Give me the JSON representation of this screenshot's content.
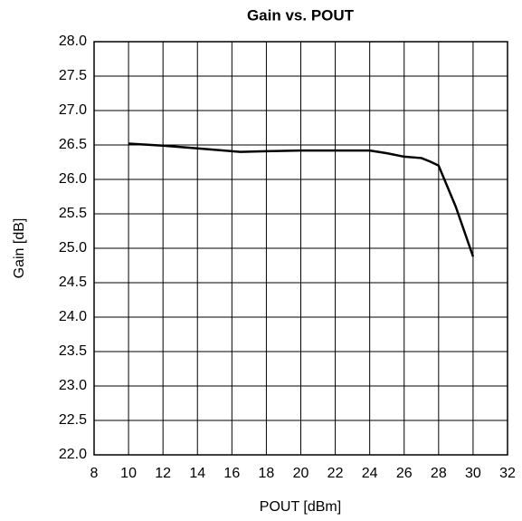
{
  "chart_data": {
    "type": "line",
    "title": "Gain vs. POUT",
    "xlabel": "POUT [dBm]",
    "ylabel": "Gain [dB]",
    "x": [
      10,
      12,
      14,
      16,
      16.5,
      18,
      20,
      22,
      24,
      25,
      26,
      27,
      27.5,
      28,
      29,
      30
    ],
    "series": [
      {
        "name": "Gain",
        "color": "#000000",
        "values": [
          26.52,
          26.49,
          26.45,
          26.41,
          26.4,
          26.41,
          26.42,
          26.42,
          26.42,
          26.38,
          26.33,
          26.31,
          26.26,
          26.2,
          25.6,
          24.88
        ]
      }
    ],
    "xlim": [
      8,
      32
    ],
    "xticks": [
      8,
      10,
      12,
      14,
      16,
      18,
      20,
      22,
      24,
      26,
      28,
      30,
      32
    ],
    "ylim": [
      22,
      28
    ],
    "yticks": [
      {
        "value": 22,
        "label": "22.0"
      },
      22.5,
      {
        "value": 23,
        "label": "23.0"
      },
      23.5,
      {
        "value": 24,
        "label": "24.0"
      },
      24.5,
      {
        "value": 25,
        "label": "25.0"
      },
      25.5,
      {
        "value": 26,
        "label": "26.0"
      },
      26.5,
      {
        "value": 27,
        "label": "27.0"
      },
      27.5,
      {
        "value": 28,
        "label": "28.0"
      }
    ],
    "grid": true
  }
}
